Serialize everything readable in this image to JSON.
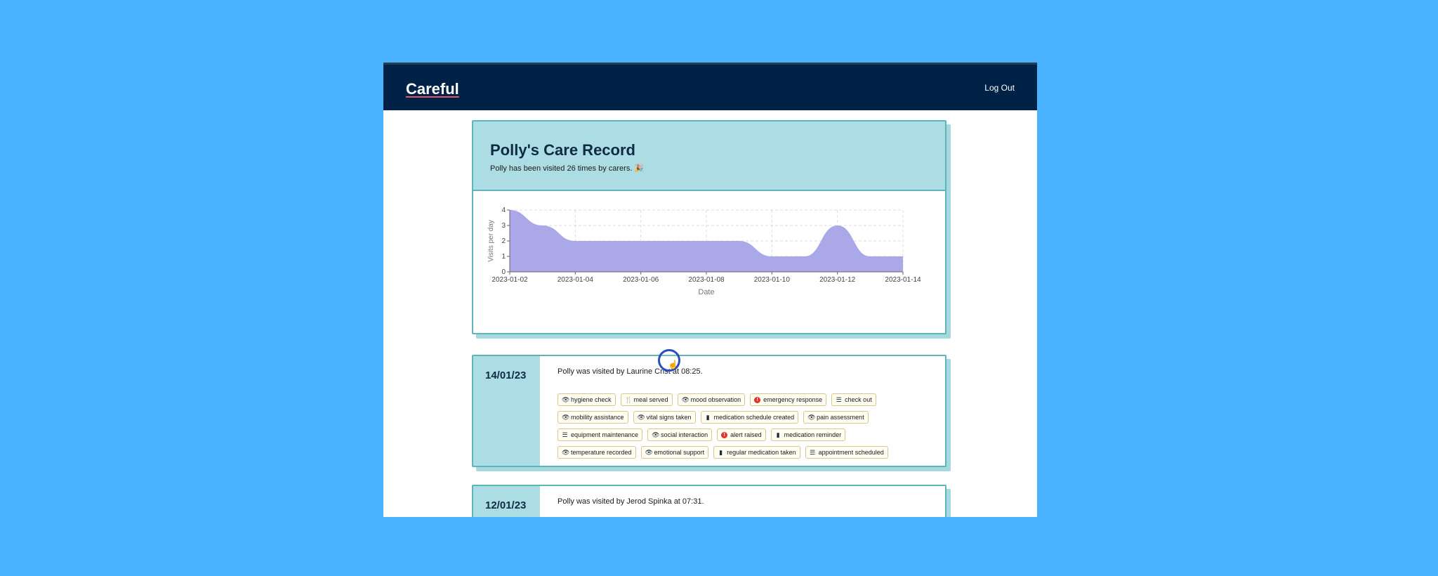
{
  "navbar": {
    "brand": "Careful",
    "logout_label": "Log Out"
  },
  "summary": {
    "title": "Polly's Care Record",
    "subtitle": "Polly has been visited 26 times by carers. 🎉"
  },
  "chart_data": {
    "type": "area",
    "xlabel": "Date",
    "ylabel": "Visits per day",
    "x": [
      "2023-01-02",
      "2023-01-03",
      "2023-01-04",
      "2023-01-05",
      "2023-01-06",
      "2023-01-07",
      "2023-01-08",
      "2023-01-09",
      "2023-01-10",
      "2023-01-11",
      "2023-01-12",
      "2023-01-13",
      "2023-01-14"
    ],
    "values": [
      4,
      3,
      2,
      2,
      2,
      2,
      2,
      2,
      1,
      1,
      3,
      1,
      1
    ],
    "xticks": [
      "2023-01-02",
      "2023-01-04",
      "2023-01-06",
      "2023-01-08",
      "2023-01-10",
      "2023-01-12",
      "2023-01-14"
    ],
    "yticks": [
      0,
      1,
      2,
      3,
      4
    ],
    "ylim": [
      0,
      4
    ],
    "grid": true,
    "color": "#aaa8e6"
  },
  "visits": [
    {
      "date": "14/01/23",
      "text": "Polly was visited by Laurine Crist at 08:25.",
      "tags": [
        {
          "label": "hygiene check",
          "icon": "eye-icon"
        },
        {
          "label": "meal served",
          "icon": "fork-knife-icon"
        },
        {
          "label": "mood observation",
          "icon": "eye-icon"
        },
        {
          "label": "emergency response",
          "icon": "alert-icon"
        },
        {
          "label": "check out",
          "icon": "list-icon"
        },
        {
          "label": "mobility assistance",
          "icon": "eye-icon"
        },
        {
          "label": "vital signs taken",
          "icon": "eye-icon"
        },
        {
          "label": "medication schedule created",
          "icon": "pill-bottle-icon"
        },
        {
          "label": "pain assessment",
          "icon": "eye-icon"
        },
        {
          "label": "equipment maintenance",
          "icon": "list-icon"
        },
        {
          "label": "social interaction",
          "icon": "eye-icon"
        },
        {
          "label": "alert raised",
          "icon": "alert-icon"
        },
        {
          "label": "medication reminder",
          "icon": "pill-bottle-icon"
        },
        {
          "label": "temperature recorded",
          "icon": "eye-icon"
        },
        {
          "label": "emotional support",
          "icon": "eye-icon"
        },
        {
          "label": "regular medication taken",
          "icon": "pill-bottle-icon"
        },
        {
          "label": "appointment scheduled",
          "icon": "list-icon"
        }
      ]
    },
    {
      "date": "12/01/23",
      "text": "Polly was visited by Jerod Spinka at 07:31.",
      "tags": []
    }
  ]
}
